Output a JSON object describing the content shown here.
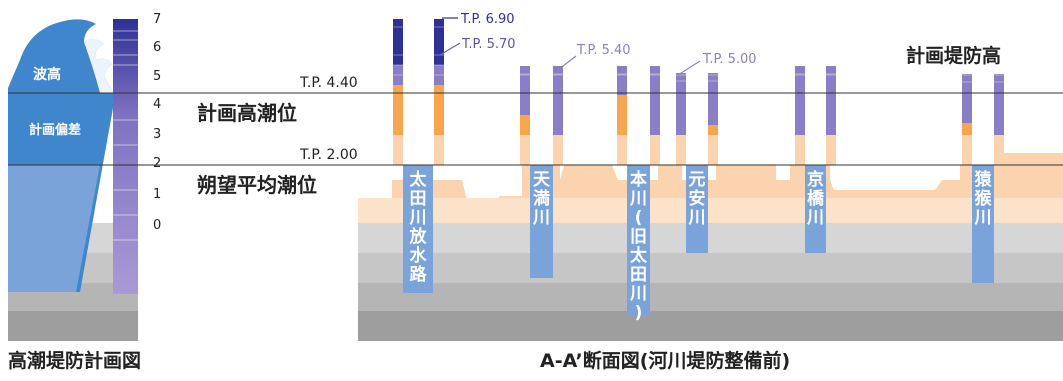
{
  "left_figure": {
    "caption": "高潮堤防計画図",
    "labels": {
      "wave": "波高",
      "deviation": "計画偏差"
    },
    "scale_ticks": [
      "7",
      "6",
      "5",
      "4",
      "3",
      "2",
      "1",
      "0"
    ]
  },
  "right_figure": {
    "caption": "A-A’断面図(河川堤防整備前)",
    "tide_lines": {
      "tp440": "T.P. 4.40",
      "tp200": "T.P. 2.00",
      "planned_high_tide": "計画高潮位",
      "mean_tide": "朔望平均潮位",
      "planned_levee_height": "計画堤防高"
    },
    "callouts": [
      {
        "text": "T.P. 6.90"
      },
      {
        "text": "T.P. 5.70"
      },
      {
        "text": "T.P. 5.40"
      },
      {
        "text": "T.P. 5.00"
      }
    ],
    "rivers": [
      {
        "name": "太田川放水路"
      },
      {
        "name": "天満川"
      },
      {
        "name": "本川(旧太田川)"
      },
      {
        "name": "元安川"
      },
      {
        "name": "京橋川"
      },
      {
        "name": "猿猴川"
      }
    ]
  },
  "colors": {
    "dark_blue": "#2e3192",
    "purple": "#8a7fc6",
    "orange": "#f7a64d",
    "peach": "#fbd3ae",
    "river_blue": "#7aa3d9"
  }
}
